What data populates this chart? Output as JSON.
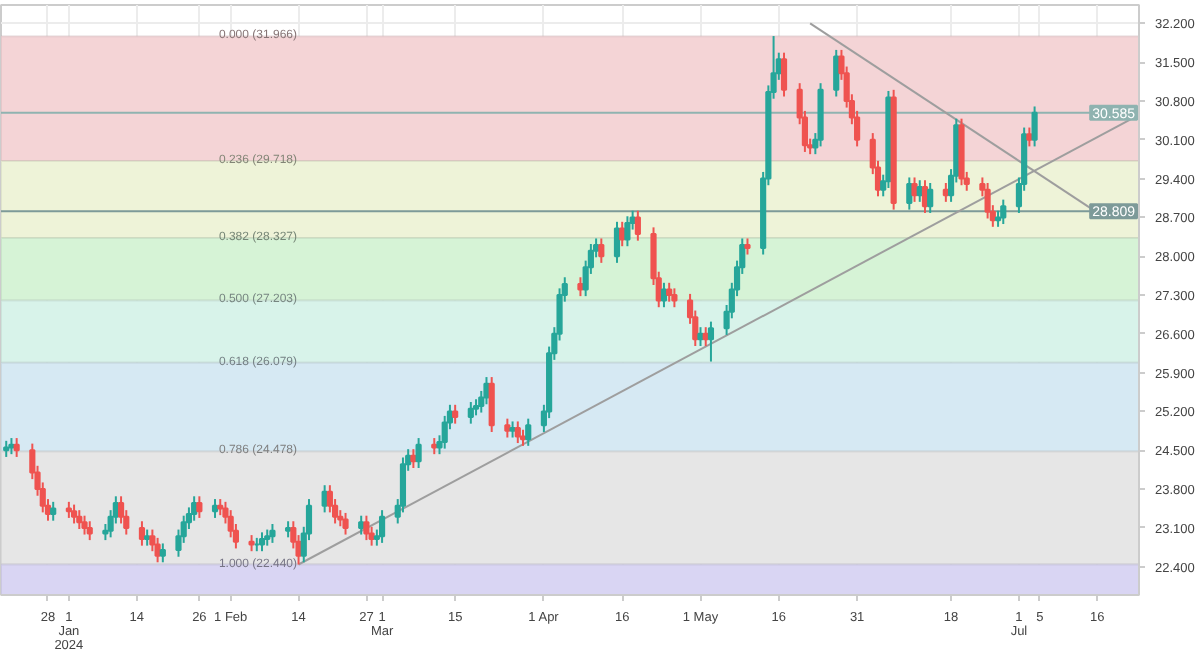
{
  "chart_data": {
    "type": "candlestick",
    "xlim": [
      "2023-12-19",
      "2024-07-24"
    ],
    "ylim": [
      21.89,
      32.53
    ],
    "yticks": [
      {
        "value": 22.4,
        "label": "22.400"
      },
      {
        "value": 23.1,
        "label": "23.100"
      },
      {
        "value": 23.8,
        "label": "23.800"
      },
      {
        "value": 24.5,
        "label": "24.500"
      },
      {
        "value": 25.2,
        "label": "25.200"
      },
      {
        "value": 25.9,
        "label": "25.900"
      },
      {
        "value": 26.6,
        "label": "26.600"
      },
      {
        "value": 27.3,
        "label": "27.300"
      },
      {
        "value": 28.0,
        "label": "28.000"
      },
      {
        "value": 28.7,
        "label": "28.700"
      },
      {
        "value": 29.4,
        "label": "29.400"
      },
      {
        "value": 30.1,
        "label": "30.100"
      },
      {
        "value": 30.8,
        "label": "30.800"
      },
      {
        "value": 31.5,
        "label": "31.500"
      },
      {
        "value": 32.2,
        "label": "32.200"
      }
    ],
    "xticks": [
      {
        "value": "2023-12-28",
        "label": "28"
      },
      {
        "value": "2024-01-01",
        "label": "1 Jan 2024"
      },
      {
        "value": "2024-01-14",
        "label": "14"
      },
      {
        "value": "2024-01-26",
        "label": "26"
      },
      {
        "value": "2024-02-01",
        "label": "1 Feb"
      },
      {
        "value": "2024-02-14",
        "label": "14"
      },
      {
        "value": "2024-02-27",
        "label": "27"
      },
      {
        "value": "2024-03-01",
        "label": "1 Mar"
      },
      {
        "value": "2024-03-15",
        "label": "15"
      },
      {
        "value": "2024-04-01",
        "label": "1 Apr"
      },
      {
        "value": "2024-04-16",
        "label": "16"
      },
      {
        "value": "2024-05-01",
        "label": "1 May"
      },
      {
        "value": "2024-05-16",
        "label": "16"
      },
      {
        "value": "2024-05-31",
        "label": "31"
      },
      {
        "value": "2024-06-18",
        "label": "18"
      },
      {
        "value": "2024-07-01",
        "label": "1 Jul"
      },
      {
        "value": "2024-07-05",
        "label": "5"
      },
      {
        "value": "2024-07-16",
        "label": "16"
      }
    ],
    "grid": true,
    "x": [
      "2023-12-20",
      "2023-12-21",
      "2023-12-22",
      "2023-12-25",
      "2023-12-26",
      "2023-12-27",
      "2023-12-28",
      "2023-12-29",
      "2024-01-01",
      "2024-01-02",
      "2024-01-03",
      "2024-01-04",
      "2024-01-05",
      "2024-01-08",
      "2024-01-09",
      "2024-01-10",
      "2024-01-11",
      "2024-01-12",
      "2024-01-15",
      "2024-01-16",
      "2024-01-17",
      "2024-01-18",
      "2024-01-19",
      "2024-01-22",
      "2024-01-23",
      "2024-01-24",
      "2024-01-25",
      "2024-01-26",
      "2024-01-29",
      "2024-01-30",
      "2024-01-31",
      "2024-02-01",
      "2024-02-02",
      "2024-02-05",
      "2024-02-06",
      "2024-02-07",
      "2024-02-08",
      "2024-02-09",
      "2024-02-12",
      "2024-02-13",
      "2024-02-14",
      "2024-02-15",
      "2024-02-16",
      "2024-02-19",
      "2024-02-20",
      "2024-02-21",
      "2024-02-22",
      "2024-02-23",
      "2024-02-26",
      "2024-02-27",
      "2024-02-28",
      "2024-02-29",
      "2024-03-01",
      "2024-03-04",
      "2024-03-05",
      "2024-03-06",
      "2024-03-07",
      "2024-03-08",
      "2024-03-11",
      "2024-03-12",
      "2024-03-13",
      "2024-03-14",
      "2024-03-15",
      "2024-03-18",
      "2024-03-19",
      "2024-03-20",
      "2024-03-21",
      "2024-03-22",
      "2024-03-25",
      "2024-03-26",
      "2024-03-27",
      "2024-03-28",
      "2024-03-29",
      "2024-04-01",
      "2024-04-02",
      "2024-04-03",
      "2024-04-04",
      "2024-04-05",
      "2024-04-08",
      "2024-04-09",
      "2024-04-10",
      "2024-04-11",
      "2024-04-12",
      "2024-04-15",
      "2024-04-16",
      "2024-04-17",
      "2024-04-18",
      "2024-04-19",
      "2024-04-22",
      "2024-04-23",
      "2024-04-24",
      "2024-04-25",
      "2024-04-26",
      "2024-04-29",
      "2024-04-30",
      "2024-05-01",
      "2024-05-02",
      "2024-05-03",
      "2024-05-06",
      "2024-05-07",
      "2024-05-08",
      "2024-05-09",
      "2024-05-10",
      "2024-05-13",
      "2024-05-14",
      "2024-05-15",
      "2024-05-16",
      "2024-05-17",
      "2024-05-20",
      "2024-05-21",
      "2024-05-22",
      "2024-05-23",
      "2024-05-24",
      "2024-05-27",
      "2024-05-28",
      "2024-05-29",
      "2024-05-30",
      "2024-05-31",
      "2024-06-03",
      "2024-06-04",
      "2024-06-05",
      "2024-06-06",
      "2024-06-07",
      "2024-06-10",
      "2024-06-11",
      "2024-06-12",
      "2024-06-13",
      "2024-06-14",
      "2024-06-17",
      "2024-06-18",
      "2024-06-19",
      "2024-06-20",
      "2024-06-21",
      "2024-06-24",
      "2024-06-25",
      "2024-06-26",
      "2024-06-27",
      "2024-06-28",
      "2024-07-01",
      "2024-07-02",
      "2024-07-03",
      "2024-07-04"
    ],
    "ohlc": [
      [
        24.5,
        24.67,
        24.38,
        24.55
      ],
      [
        24.55,
        24.72,
        24.43,
        24.6
      ],
      [
        24.6,
        24.72,
        24.38,
        24.5
      ],
      [
        24.5,
        24.62,
        23.98,
        24.1
      ],
      [
        24.1,
        24.22,
        23.68,
        23.8
      ],
      [
        23.8,
        23.92,
        23.38,
        23.5
      ],
      [
        23.5,
        23.62,
        23.23,
        23.35
      ],
      [
        23.35,
        23.57,
        23.23,
        23.45
      ],
      [
        23.45,
        23.57,
        23.28,
        23.4
      ],
      [
        23.4,
        23.52,
        23.18,
        23.3
      ],
      [
        23.3,
        23.42,
        23.08,
        23.2
      ],
      [
        23.2,
        23.32,
        22.98,
        23.1
      ],
      [
        23.1,
        23.22,
        22.88,
        23.0
      ],
      [
        23.0,
        23.17,
        22.88,
        23.05
      ],
      [
        23.05,
        23.42,
        22.93,
        23.3
      ],
      [
        23.3,
        23.67,
        23.18,
        23.55
      ],
      [
        23.55,
        23.67,
        23.18,
        23.3
      ],
      [
        23.3,
        23.42,
        22.98,
        23.1
      ],
      [
        23.1,
        23.22,
        22.78,
        22.9
      ],
      [
        22.9,
        23.07,
        22.78,
        22.95
      ],
      [
        22.95,
        23.07,
        22.68,
        22.8
      ],
      [
        22.8,
        22.92,
        22.48,
        22.6
      ],
      [
        22.6,
        22.82,
        22.48,
        22.7
      ],
      [
        22.7,
        23.07,
        22.58,
        22.95
      ],
      [
        22.95,
        23.32,
        22.83,
        23.2
      ],
      [
        23.2,
        23.47,
        23.08,
        23.35
      ],
      [
        23.35,
        23.67,
        23.23,
        23.55
      ],
      [
        23.55,
        23.67,
        23.28,
        23.4
      ],
      [
        23.4,
        23.62,
        23.28,
        23.5
      ],
      [
        23.5,
        23.62,
        23.33,
        23.45
      ],
      [
        23.45,
        23.57,
        23.18,
        23.3
      ],
      [
        23.3,
        23.42,
        22.93,
        23.05
      ],
      [
        23.05,
        23.17,
        22.73,
        22.85
      ],
      [
        22.85,
        22.97,
        22.68,
        22.8
      ],
      [
        22.8,
        22.92,
        22.68,
        22.8
      ],
      [
        22.8,
        23.02,
        22.68,
        22.9
      ],
      [
        22.9,
        23.07,
        22.78,
        22.95
      ],
      [
        22.95,
        23.17,
        22.83,
        23.05
      ],
      [
        23.05,
        23.22,
        22.93,
        23.1
      ],
      [
        23.1,
        23.22,
        22.73,
        22.85
      ],
      [
        22.85,
        22.97,
        22.44,
        22.6
      ],
      [
        22.6,
        23.12,
        22.48,
        23.0
      ],
      [
        23.0,
        23.62,
        22.88,
        23.5
      ],
      [
        23.5,
        23.87,
        23.38,
        23.75
      ],
      [
        23.75,
        23.87,
        23.38,
        23.5
      ],
      [
        23.5,
        23.62,
        23.18,
        23.3
      ],
      [
        23.3,
        23.42,
        23.13,
        23.25
      ],
      [
        23.25,
        23.37,
        22.98,
        23.1
      ],
      [
        23.1,
        23.32,
        22.98,
        23.2
      ],
      [
        23.2,
        23.32,
        22.88,
        23.0
      ],
      [
        23.0,
        23.12,
        22.78,
        22.9
      ],
      [
        22.9,
        23.07,
        22.78,
        22.95
      ],
      [
        22.95,
        23.42,
        22.83,
        23.3
      ],
      [
        23.3,
        23.62,
        23.18,
        23.5
      ],
      [
        23.5,
        24.37,
        23.38,
        24.25
      ],
      [
        24.25,
        24.52,
        24.13,
        24.4
      ],
      [
        24.4,
        24.52,
        24.18,
        24.3
      ],
      [
        24.3,
        24.72,
        24.18,
        24.6
      ],
      [
        24.6,
        24.72,
        24.43,
        24.55
      ],
      [
        24.55,
        24.77,
        24.43,
        24.65
      ],
      [
        24.65,
        25.12,
        24.53,
        25.0
      ],
      [
        25.0,
        25.32,
        24.88,
        25.2
      ],
      [
        25.2,
        25.32,
        24.98,
        25.1
      ],
      [
        25.1,
        25.37,
        24.98,
        25.25
      ],
      [
        25.25,
        25.42,
        25.13,
        25.3
      ],
      [
        25.3,
        25.57,
        25.18,
        25.45
      ],
      [
        25.45,
        25.82,
        25.33,
        25.7
      ],
      [
        25.7,
        25.82,
        24.83,
        24.95
      ],
      [
        24.95,
        25.07,
        24.73,
        24.85
      ],
      [
        24.85,
        25.02,
        24.73,
        24.9
      ],
      [
        24.9,
        25.02,
        24.63,
        24.75
      ],
      [
        24.75,
        24.87,
        24.58,
        24.7
      ],
      [
        24.7,
        25.07,
        24.58,
        24.95
      ],
      [
        24.95,
        25.32,
        24.83,
        25.2
      ],
      [
        25.2,
        26.37,
        25.08,
        26.25
      ],
      [
        26.25,
        26.72,
        26.13,
        26.6
      ],
      [
        26.6,
        27.42,
        26.48,
        27.3
      ],
      [
        27.3,
        27.62,
        27.18,
        27.5
      ],
      [
        27.5,
        27.62,
        27.28,
        27.4
      ],
      [
        27.4,
        27.92,
        27.28,
        27.8
      ],
      [
        27.8,
        28.22,
        27.68,
        28.1
      ],
      [
        28.1,
        28.32,
        27.98,
        28.2
      ],
      [
        28.2,
        28.32,
        27.88,
        28.0
      ],
      [
        28.0,
        28.62,
        27.88,
        28.5
      ],
      [
        28.5,
        28.62,
        28.18,
        28.3
      ],
      [
        28.3,
        28.72,
        28.18,
        28.6
      ],
      [
        28.6,
        28.82,
        28.48,
        28.7
      ],
      [
        28.7,
        28.82,
        28.28,
        28.4
      ],
      [
        28.4,
        28.52,
        27.48,
        27.6
      ],
      [
        27.6,
        27.72,
        27.08,
        27.2
      ],
      [
        27.2,
        27.52,
        27.08,
        27.4
      ],
      [
        27.4,
        27.52,
        27.18,
        27.3
      ],
      [
        27.3,
        27.42,
        27.08,
        27.2
      ],
      [
        27.2,
        27.32,
        26.78,
        26.9
      ],
      [
        26.9,
        27.02,
        26.38,
        26.5
      ],
      [
        26.5,
        26.72,
        26.38,
        26.6
      ],
      [
        26.6,
        26.72,
        26.38,
        26.5
      ],
      [
        26.5,
        26.82,
        26.1,
        26.7
      ],
      [
        26.7,
        27.12,
        26.58,
        27.0
      ],
      [
        27.0,
        27.52,
        26.88,
        27.4
      ],
      [
        27.4,
        27.92,
        27.28,
        27.8
      ],
      [
        27.8,
        28.32,
        27.68,
        28.2
      ],
      [
        28.2,
        28.32,
        28.03,
        28.15
      ],
      [
        28.15,
        29.52,
        28.03,
        29.4
      ],
      [
        29.4,
        31.08,
        29.28,
        30.96
      ],
      [
        30.96,
        31.97,
        30.84,
        31.3
      ],
      [
        31.3,
        31.67,
        31.18,
        31.55
      ],
      [
        31.55,
        31.67,
        30.88,
        31.0
      ],
      [
        31.0,
        31.12,
        30.38,
        30.5
      ],
      [
        30.5,
        30.62,
        29.88,
        30.0
      ],
      [
        30.0,
        30.12,
        29.84,
        29.96
      ],
      [
        29.96,
        30.22,
        29.84,
        30.1
      ],
      [
        30.1,
        31.12,
        29.98,
        31.0
      ],
      [
        31.0,
        31.72,
        30.88,
        31.6
      ],
      [
        31.6,
        31.72,
        31.18,
        31.3
      ],
      [
        31.3,
        31.42,
        30.68,
        30.8
      ],
      [
        30.8,
        30.92,
        30.38,
        30.5
      ],
      [
        30.5,
        30.62,
        29.98,
        30.1
      ],
      [
        30.1,
        30.22,
        29.48,
        29.6
      ],
      [
        29.6,
        29.72,
        29.08,
        29.2
      ],
      [
        29.2,
        29.47,
        29.08,
        29.35
      ],
      [
        29.35,
        30.98,
        29.23,
        30.86
      ],
      [
        30.86,
        31.0,
        28.84,
        28.96
      ],
      [
        28.96,
        29.42,
        28.84,
        29.3
      ],
      [
        29.3,
        29.42,
        28.98,
        29.1
      ],
      [
        29.1,
        29.37,
        28.98,
        29.25
      ],
      [
        29.25,
        29.37,
        28.78,
        28.9
      ],
      [
        28.9,
        29.32,
        28.78,
        29.2
      ],
      [
        29.2,
        29.32,
        28.98,
        29.1
      ],
      [
        29.1,
        29.57,
        28.98,
        29.45
      ],
      [
        29.45,
        30.48,
        29.33,
        30.36
      ],
      [
        30.36,
        30.48,
        29.28,
        29.4
      ],
      [
        29.4,
        29.52,
        29.18,
        29.3
      ],
      [
        29.3,
        29.42,
        29.08,
        29.2
      ],
      [
        29.2,
        29.32,
        28.68,
        28.8
      ],
      [
        28.8,
        28.92,
        28.53,
        28.65
      ],
      [
        28.65,
        28.82,
        28.53,
        28.7
      ],
      [
        28.7,
        29.02,
        28.58,
        28.9
      ],
      [
        28.9,
        29.42,
        28.78,
        29.3
      ],
      [
        29.3,
        30.32,
        29.18,
        30.2
      ],
      [
        30.2,
        30.32,
        29.98,
        30.1
      ],
      [
        30.1,
        30.7,
        29.98,
        30.585
      ]
    ],
    "colors": [
      "#26a69a",
      "#26a69a",
      "#ef5350",
      "#ef5350",
      "#ef5350",
      "#ef5350",
      "#ef5350",
      "#26a69a",
      "#ef5350",
      "#ef5350",
      "#ef5350",
      "#ef5350",
      "#ef5350",
      "#26a69a",
      "#26a69a",
      "#26a69a",
      "#ef5350",
      "#ef5350",
      "#ef5350",
      "#26a69a",
      "#ef5350",
      "#ef5350",
      "#26a69a",
      "#26a69a",
      "#26a69a",
      "#26a69a",
      "#26a69a",
      "#ef5350",
      "#26a69a",
      "#ef5350",
      "#ef5350",
      "#ef5350",
      "#ef5350",
      "#ef5350",
      "#26a69a",
      "#26a69a",
      "#26a69a",
      "#26a69a",
      "#26a69a",
      "#ef5350",
      "#ef5350",
      "#26a69a",
      "#26a69a",
      "#26a69a",
      "#ef5350",
      "#ef5350",
      "#ef5350",
      "#ef5350",
      "#26a69a",
      "#ef5350",
      "#ef5350",
      "#26a69a",
      "#26a69a",
      "#26a69a",
      "#26a69a",
      "#26a69a",
      "#ef5350",
      "#26a69a",
      "#ef5350",
      "#26a69a",
      "#26a69a",
      "#26a69a",
      "#ef5350",
      "#26a69a",
      "#26a69a",
      "#26a69a",
      "#26a69a",
      "#ef5350",
      "#ef5350",
      "#26a69a",
      "#ef5350",
      "#ef5350",
      "#26a69a",
      "#26a69a",
      "#26a69a",
      "#26a69a",
      "#26a69a",
      "#26a69a",
      "#ef5350",
      "#26a69a",
      "#26a69a",
      "#26a69a",
      "#ef5350",
      "#26a69a",
      "#ef5350",
      "#26a69a",
      "#26a69a",
      "#ef5350",
      "#ef5350",
      "#ef5350",
      "#26a69a",
      "#ef5350",
      "#ef5350",
      "#ef5350",
      "#ef5350",
      "#26a69a",
      "#ef5350",
      "#26a69a",
      "#26a69a",
      "#26a69a",
      "#26a69a",
      "#26a69a",
      "#ef5350",
      "#26a69a",
      "#26a69a",
      "#26a69a",
      "#26a69a",
      "#ef5350",
      "#ef5350",
      "#ef5350",
      "#ef5350",
      "#26a69a",
      "#26a69a",
      "#26a69a",
      "#ef5350",
      "#ef5350",
      "#ef5350",
      "#ef5350",
      "#ef5350",
      "#ef5350",
      "#26a69a",
      "#26a69a",
      "#ef5350",
      "#26a69a",
      "#ef5350",
      "#26a69a",
      "#ef5350",
      "#26a69a",
      "#ef5350",
      "#26a69a",
      "#26a69a",
      "#ef5350",
      "#ef5350",
      "#ef5350",
      "#ef5350",
      "#ef5350",
      "#26a69a",
      "#26a69a",
      "#26a69a",
      "#26a69a",
      "#ef5350",
      "#26a69a"
    ],
    "series": [
      {
        "type": "line",
        "color": "#9e9e9e",
        "x": [
          "2024-05-22",
          "2024-07-15"
        ],
        "values": [
          32.2,
          28.85
        ]
      },
      {
        "type": "line",
        "color": "#9e9e9e",
        "x": [
          "2024-02-14",
          "2024-07-24"
        ],
        "values": [
          22.44,
          30.55
        ]
      }
    ],
    "bands": [
      {
        "axis": "y",
        "from": 29.718,
        "to": 31.966,
        "label": "0.000 (31.966)",
        "color": "#f4d4d6"
      },
      {
        "axis": "y",
        "from": 28.327,
        "to": 29.718,
        "label": "0.236 (29.718)",
        "color": "#eef3d8"
      },
      {
        "axis": "y",
        "from": 27.203,
        "to": 28.327,
        "label": "0.382 (28.327)",
        "color": "#d6f3d6"
      },
      {
        "axis": "y",
        "from": 26.079,
        "to": 27.203,
        "label": "0.500 (27.203)",
        "color": "#d8f3ea"
      },
      {
        "axis": "y",
        "from": 24.478,
        "to": 26.079,
        "label": "0.618 (26.079)",
        "color": "#d6e9f3"
      },
      {
        "axis": "y",
        "from": 22.44,
        "to": 24.478,
        "label": "0.786 (24.478)",
        "color": "#e6e6e6"
      },
      {
        "axis": "y",
        "from": 21.89,
        "to": 22.44,
        "label": "1.000 (22.440)",
        "color": "#d9d5f3"
      }
    ],
    "ref_lines": [
      {
        "axis": "y",
        "value": 30.585,
        "label": "30.585",
        "color": "#8fb3b0"
      },
      {
        "axis": "y",
        "value": 28.809,
        "label": "28.809",
        "color": "#7d9a99"
      }
    ]
  }
}
